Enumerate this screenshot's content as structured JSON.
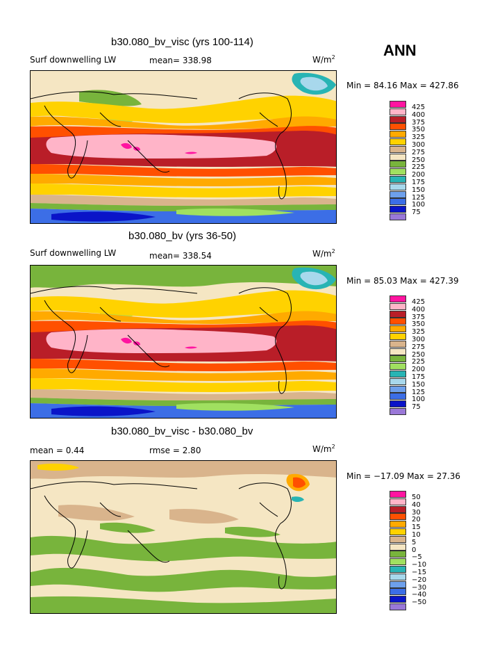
{
  "season": "ANN",
  "panels": [
    {
      "title": "b30.080_bv_visc (yrs 100-114)",
      "left_label": "Surf downwelling LW",
      "center_label": "mean= 338.98",
      "units": "W/m",
      "units_exp": "2",
      "minmax": "Min =  84.16 Max = 427.86",
      "kind": "field"
    },
    {
      "title": "b30.080_bv (yrs 36-50)",
      "left_label": "Surf downwelling LW",
      "center_label": "mean= 338.54",
      "units": "W/m",
      "units_exp": "2",
      "minmax": "Min =  85.03 Max = 427.39",
      "kind": "field"
    },
    {
      "title": "b30.080_bv_visc - b30.080_bv",
      "left_label": "mean =    0.44",
      "center_label": "rmse =    2.80",
      "units": "W/m",
      "units_exp": "2",
      "minmax": "Min = −17.09 Max =  27.36",
      "kind": "diff"
    }
  ],
  "chart_data": [
    {
      "type": "heatmap",
      "title": "b30.080_bv_visc (yrs 100-114)",
      "variable": "Surf downwelling LW",
      "units": "W/m2",
      "mean": 338.98,
      "min": 84.16,
      "max": 427.86,
      "levels": [
        75,
        100,
        125,
        150,
        175,
        200,
        225,
        250,
        275,
        300,
        325,
        350,
        375,
        400,
        425
      ],
      "colors": [
        "#9a78d8",
        "#0a14c8",
        "#3c6ee6",
        "#6ea0ec",
        "#a8d8ec",
        "#28b4b4",
        "#a0e060",
        "#78b43c",
        "#f5e6c3",
        "#d9b48c",
        "#ffd200",
        "#ffaa00",
        "#ff5000",
        "#b91e28",
        "#ffb4c8",
        "#ff14a0"
      ]
    },
    {
      "type": "heatmap",
      "title": "b30.080_bv (yrs 36-50)",
      "variable": "Surf downwelling LW",
      "units": "W/m2",
      "mean": 338.54,
      "min": 85.03,
      "max": 427.39,
      "levels": [
        75,
        100,
        125,
        150,
        175,
        200,
        225,
        250,
        275,
        300,
        325,
        350,
        375,
        400,
        425
      ],
      "colors": [
        "#9a78d8",
        "#0a14c8",
        "#3c6ee6",
        "#6ea0ec",
        "#a8d8ec",
        "#28b4b4",
        "#a0e060",
        "#78b43c",
        "#f5e6c3",
        "#d9b48c",
        "#ffd200",
        "#ffaa00",
        "#ff5000",
        "#b91e28",
        "#ffb4c8",
        "#ff14a0"
      ]
    },
    {
      "type": "heatmap",
      "title": "b30.080_bv_visc - b30.080_bv",
      "units": "W/m2",
      "mean": 0.44,
      "rmse": 2.8,
      "min": -17.09,
      "max": 27.36,
      "levels": [
        -50,
        -40,
        -30,
        -20,
        -15,
        -10,
        -5,
        0,
        5,
        10,
        15,
        20,
        30,
        40,
        50
      ],
      "colors": [
        "#9a78d8",
        "#0a14c8",
        "#3c6ee6",
        "#6ea0ec",
        "#a8d8ec",
        "#28b4b4",
        "#a0e060",
        "#78b43c",
        "#f5e6c3",
        "#d9b48c",
        "#ffd200",
        "#ffaa00",
        "#ff5000",
        "#b91e28",
        "#ffb4c8",
        "#ff14a0"
      ]
    }
  ],
  "colorbar_labels": {
    "field": [
      "425",
      "400",
      "375",
      "350",
      "325",
      "300",
      "275",
      "250",
      "225",
      "200",
      "175",
      "150",
      "125",
      "100",
      "75"
    ],
    "diff": [
      "50",
      "40",
      "30",
      "20",
      "15",
      "10",
      "5",
      "0",
      "−5",
      "−10",
      "−15",
      "−20",
      "−30",
      "−40",
      "−50"
    ]
  },
  "colors": {
    "c75": "#9a78d8",
    "c100": "#0a14c8",
    "c125": "#3c6ee6",
    "c150": "#6ea0ec",
    "c175": "#a8d8ec",
    "c200": "#28b4b4",
    "c225": "#a0e060",
    "c250": "#78b43c",
    "c275": "#f5e6c3",
    "c300": "#d9b48c",
    "c325": "#ffd200",
    "c350": "#ffaa00",
    "c375": "#ff5000",
    "c400": "#b91e28",
    "c425": "#ffb4c8",
    "c450": "#ff14a0"
  }
}
